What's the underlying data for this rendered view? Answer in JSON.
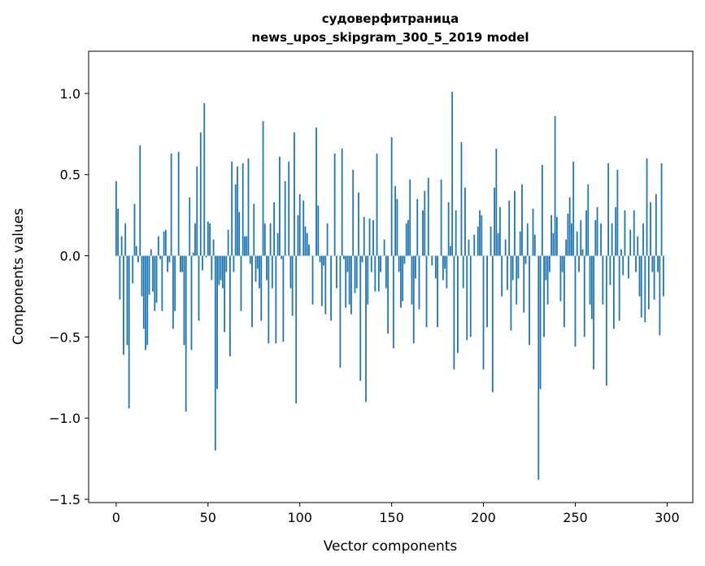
{
  "chart_data": {
    "type": "bar",
    "title_line1": "судоверфитраница",
    "title_line2": "news_upos_skipgram_300_5_2019 model",
    "xlabel": "Vector components",
    "ylabel": "Components values",
    "xlim": [
      -15,
      314
    ],
    "ylim": [
      -1.52,
      1.26
    ],
    "xticks": [
      0,
      50,
      100,
      150,
      200,
      250,
      300
    ],
    "yticks": [
      -1.5,
      -1.0,
      -0.5,
      0.0,
      0.5,
      1.0
    ],
    "ytick_labels": [
      "−1.5",
      "−1.0",
      "−0.5",
      "0.0",
      "0.5",
      "1.0"
    ],
    "grid": false,
    "bar_color": "#1f77b4",
    "values": [
      0.46,
      0.29,
      -0.27,
      0.12,
      -0.61,
      0.2,
      -0.55,
      -0.94,
      0.0,
      -0.17,
      0.32,
      0.06,
      -0.04,
      0.68,
      -0.25,
      -0.45,
      -0.58,
      -0.55,
      -0.24,
      0.04,
      -0.22,
      -0.34,
      -0.29,
      0.12,
      -0.02,
      -0.34,
      0.15,
      0.16,
      -0.1,
      -0.04,
      0.63,
      -0.45,
      -0.34,
      0.0,
      0.64,
      -0.1,
      -0.1,
      -0.55,
      -0.96,
      0.0,
      0.36,
      -0.58,
      0.02,
      0.2,
      0.55,
      -0.4,
      0.76,
      -0.09,
      0.94,
      -0.01,
      0.21,
      0.2,
      -0.15,
      0.1,
      -1.2,
      -0.82,
      -0.18,
      -0.15,
      -0.2,
      -0.47,
      -0.1,
      0.16,
      -0.62,
      0.58,
      -0.1,
      0.44,
      0.55,
      0.27,
      -0.34,
      0.57,
      0.12,
      0.12,
      0.6,
      -0.05,
      -0.44,
      0.32,
      -0.16,
      -0.08,
      -0.2,
      -0.4,
      0.83,
      0.2,
      -0.15,
      -0.54,
      0.2,
      -0.2,
      0.33,
      -0.54,
      0.14,
      0.61,
      -0.02,
      -0.53,
      0.46,
      0.0,
      0.58,
      -0.2,
      -0.37,
      0.76,
      -0.91,
      0.25,
      0.38,
      0.0,
      0.34,
      0.18,
      0.14,
      0.07,
      0.0,
      -0.3,
      0.0,
      0.79,
      0.31,
      -0.04,
      -0.31,
      -0.06,
      -0.36,
      0.2,
      0.0,
      -0.4,
      0.0,
      0.63,
      -0.2,
      0.0,
      -0.69,
      0.66,
      -0.02,
      -0.32,
      -0.1,
      -0.3,
      -0.36,
      0.53,
      -0.23,
      -0.2,
      0.39,
      -0.77,
      -0.04,
      0.24,
      -0.9,
      -0.3,
      0.23,
      -0.1,
      0.22,
      -0.22,
      0.63,
      -0.22,
      -0.1,
      0.0,
      0.1,
      -0.2,
      -0.48,
      0.0,
      0.73,
      -0.57,
      0.43,
      0.35,
      -0.1,
      -0.32,
      -0.28,
      -0.05,
      0.2,
      0.22,
      0.47,
      -0.3,
      -0.54,
      -0.14,
      0.35,
      -0.33,
      0.0,
      0.28,
      0.4,
      -0.44,
      0.48,
      0.0,
      -0.06,
      0.0,
      -0.14,
      -0.44,
      0.0,
      0.47,
      -0.15,
      -0.08,
      -0.2,
      0.33,
      0.06,
      1.01,
      -0.7,
      0.28,
      -0.6,
      0.0,
      0.7,
      -0.2,
      0.42,
      -0.52,
      0.1,
      -0.5,
      0.0,
      0.13,
      0.0,
      0.18,
      0.28,
      0.25,
      -0.7,
      0.0,
      -0.44,
      0.0,
      0.18,
      -0.84,
      0.42,
      0.66,
      0.14,
      0.3,
      -0.25,
      0.0,
      0.1,
      -0.21,
      0.34,
      -0.46,
      -0.15,
      0.4,
      -0.3,
      -0.14,
      0.15,
      0.44,
      -0.35,
      -0.05,
      0.2,
      -0.55,
      0.0,
      0.29,
      0.13,
      0.0,
      -1.38,
      -0.82,
      0.56,
      -0.5,
      -0.15,
      -0.3,
      -0.1,
      0.25,
      0.14,
      0.86,
      0.24,
      0.0,
      -0.28,
      -0.1,
      -0.44,
      0.1,
      0.26,
      0.36,
      0.2,
      0.58,
      -0.56,
      0.15,
      -0.1,
      0.22,
      0.04,
      -0.5,
      0.28,
      0.44,
      -0.3,
      -0.39,
      -0.7,
      0.22,
      0.3,
      0.0,
      0.2,
      -0.3,
      0.0,
      -0.8,
      0.57,
      -0.18,
      0.2,
      -0.45,
      0.3,
      0.53,
      -0.4,
      0.04,
      -0.12,
      0.28,
      0.0,
      -0.14,
      0.16,
      0.0,
      0.28,
      -0.1,
      0.12,
      -0.25,
      -0.38,
      0.2,
      -0.41,
      0.6,
      -0.33,
      0.33,
      -0.1,
      -0.27,
      0.38,
      -0.1,
      -0.49,
      0.57,
      -0.25,
      0.0
    ]
  }
}
